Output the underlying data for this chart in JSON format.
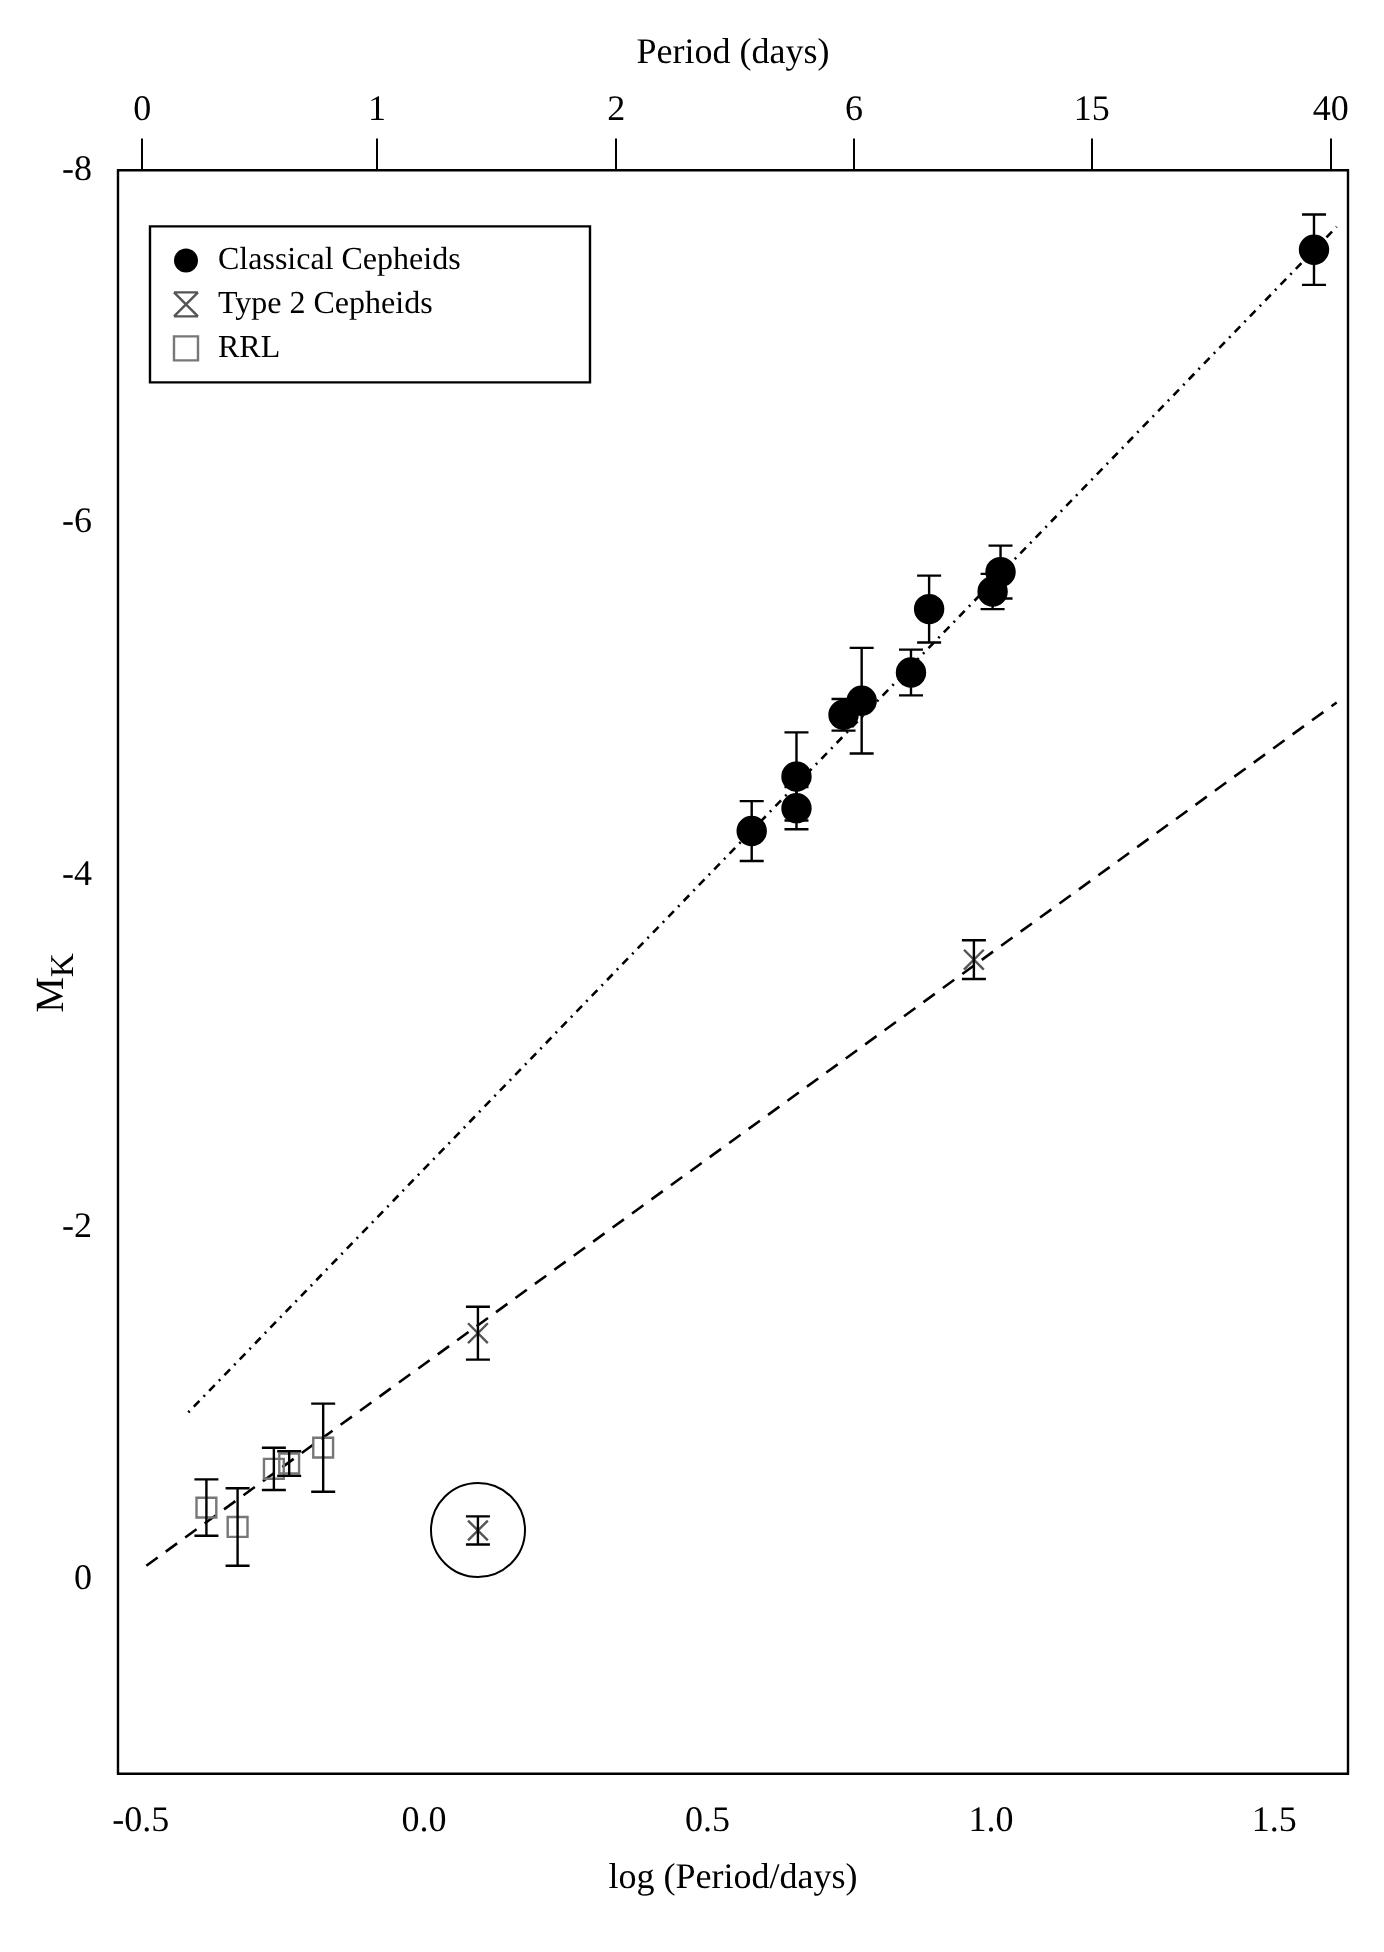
{
  "chart_data": {
    "type": "scatter",
    "xlabel": "log (Period/days)",
    "ylabel": "M$_{K}$",
    "x2label": "Period (days)",
    "xlim": [
      -0.54,
      1.63
    ],
    "xticks": [
      -0.5,
      {
        "value": 0,
        "label": "0.0"
      },
      0.5,
      {
        "value": 1,
        "label": "1.0"
      },
      1.5
    ],
    "x2lim": [
      0.29,
      42.7
    ],
    "x2ticks": [
      {
        "value": 0.32,
        "label": "0"
      },
      {
        "value": 0.83,
        "label": "1"
      },
      {
        "value": 2.19,
        "label": "2"
      },
      {
        "value": 5.75,
        "label": "6"
      },
      {
        "value": 15.1,
        "label": "15"
      },
      {
        "value": 39.8,
        "label": "40"
      }
    ],
    "log": "x2",
    "ylim": [
      1.1,
      -8
    ],
    "yticks": [
      -8,
      -6,
      -4,
      -2,
      0
    ],
    "grid": false,
    "legend": "top left",
    "series": [
      {
        "name": "Classical Cepheids",
        "marker": "circle",
        "color": "#000000",
        "x": [
          0.578,
          0.657,
          0.657,
          0.74,
          0.772,
          0.859,
          0.891,
          1.003,
          1.017,
          1.57
        ],
        "values": [
          -4.25,
          -4.56,
          -4.38,
          -4.91,
          -4.99,
          -5.15,
          -5.51,
          -5.61,
          -5.72,
          -7.55
        ],
        "errors": [
          0.17,
          0.25,
          0.12,
          0.09,
          0.3,
          0.13,
          0.19,
          0.1,
          0.15,
          0.2
        ]
      },
      {
        "name": "Type 2 Cepheids",
        "marker": "cross",
        "color": "#555555",
        "x": [
          0.095,
          0.97,
          0.095
        ],
        "values": [
          -1.4,
          -3.52,
          -0.28
        ],
        "errors": [
          0.15,
          0.11,
          0.08
        ]
      },
      {
        "name": "RRL",
        "marker": "square",
        "color": "#777777",
        "x": [
          -0.384,
          -0.329,
          -0.265,
          -0.238,
          -0.178
        ],
        "values": [
          -0.41,
          -0.3,
          -0.63,
          -0.66,
          -0.75
        ],
        "errors": [
          0.16,
          0.22,
          0.12,
          0.07,
          0.25
        ]
      },
      {
        "type": "line",
        "marker": "none",
        "line_style": "dotted",
        "color": "#000000",
        "x": [
          -0.416,
          1.61
        ],
        "values": [
          -0.95,
          -7.68
        ]
      },
      {
        "type": "line",
        "marker": "none",
        "line_style": "dashed",
        "color": "#000000",
        "x": [
          -0.49,
          1.61
        ],
        "values": [
          -0.08,
          -4.98
        ]
      }
    ]
  }
}
